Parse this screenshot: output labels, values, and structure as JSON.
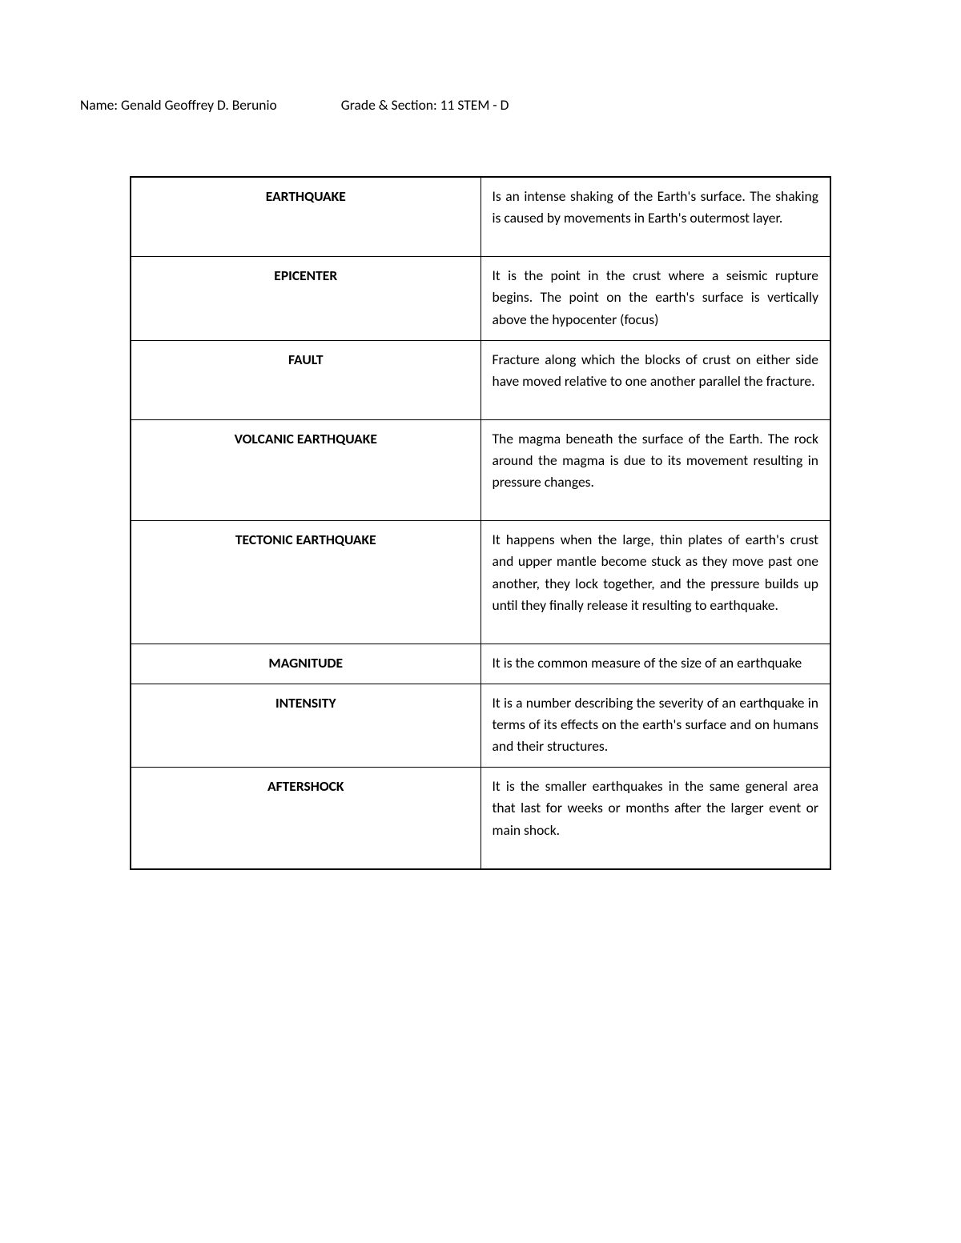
{
  "header": {
    "name_label": "Name:",
    "name_value": "Genald Geoffrey D. Berunio",
    "grade_label": "Grade & Section:",
    "grade_value": "11 STEM - D"
  },
  "table": {
    "border_color": "#000000",
    "background_color": "#ffffff",
    "text_color": "#000000",
    "font_size_pt": 13,
    "rows": [
      {
        "term": "EARTHQUAKE",
        "definition": "Is an intense shaking of the Earth's surface. The shaking is caused by movements in Earth's outermost layer.",
        "extra_padding": true
      },
      {
        "term": "EPICENTER",
        "definition": "It is the point in the crust where a seismic rupture begins. The point on the earth's surface is vertically above the hypocenter (focus)",
        "extra_padding": false
      },
      {
        "term": "FAULT",
        "definition": "Fracture along which the blocks of crust on either side have moved relative to one another parallel the fracture.",
        "extra_padding": true
      },
      {
        "term": "VOLCANIC EARTHQUAKE",
        "definition": "The magma beneath the surface of the Earth. The rock around the magma is due to its movement resulting in pressure changes.",
        "extra_padding": true
      },
      {
        "term": "TECTONIC EARTHQUAKE",
        "definition": "It happens when the large, thin plates of earth's crust and upper mantle become stuck as they move past one another, they lock together, and the pressure builds up until they finally release it resulting to earthquake.",
        "extra_padding": true
      },
      {
        "term": "MAGNITUDE",
        "definition": "It is the common measure of the size of an earthquake",
        "extra_padding": false
      },
      {
        "term": "INTENSITY",
        "definition": "It is a number describing the severity of an earthquake in terms of its effects on the earth's surface and on humans and their structures.",
        "extra_padding": false
      },
      {
        "term": "AFTERSHOCK",
        "definition": "It is the smaller earthquakes in the same general area that last for weeks or months after the larger event or main shock.",
        "extra_padding": true
      }
    ]
  }
}
